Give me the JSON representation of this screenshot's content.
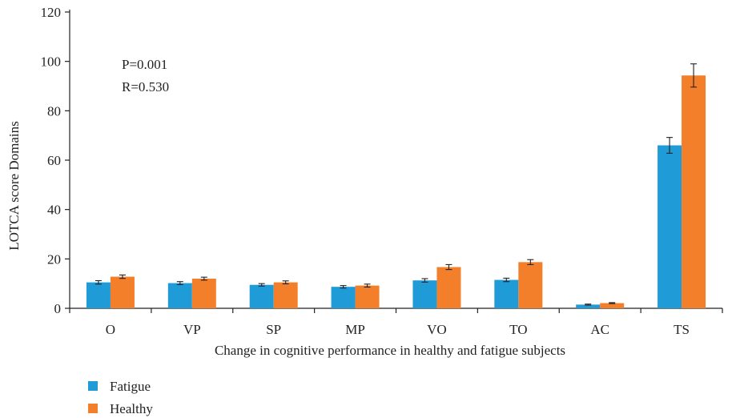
{
  "chart_data": {
    "type": "bar",
    "title": "",
    "xlabel": "Change in cognitive performance in healthy and fatigue subjects",
    "ylabel": "LOTCA score Domains",
    "ylim": [
      0,
      120
    ],
    "yticks": [
      0,
      20,
      40,
      60,
      80,
      100,
      120
    ],
    "categories": [
      "O",
      "VP",
      "SP",
      "MP",
      "VO",
      "TO",
      "AC",
      "TS"
    ],
    "series": [
      {
        "name": "Fatigue",
        "color": "#1f9bd7",
        "values": [
          10.5,
          10.2,
          9.5,
          8.7,
          11.3,
          11.5,
          1.5,
          66
        ],
        "errors": [
          0.7,
          0.6,
          0.5,
          0.5,
          0.7,
          0.7,
          0.2,
          3.2
        ]
      },
      {
        "name": "Healthy",
        "color": "#f47f2a",
        "values": [
          12.8,
          12.0,
          10.5,
          9.2,
          16.7,
          18.7,
          2.1,
          94.3
        ],
        "errors": [
          0.7,
          0.6,
          0.6,
          0.6,
          1.0,
          1.0,
          0.2,
          4.7
        ]
      }
    ],
    "annotations": [
      "P=0.001",
      "R=0.530"
    ],
    "grid": false,
    "legend_position": "bottom-left"
  }
}
